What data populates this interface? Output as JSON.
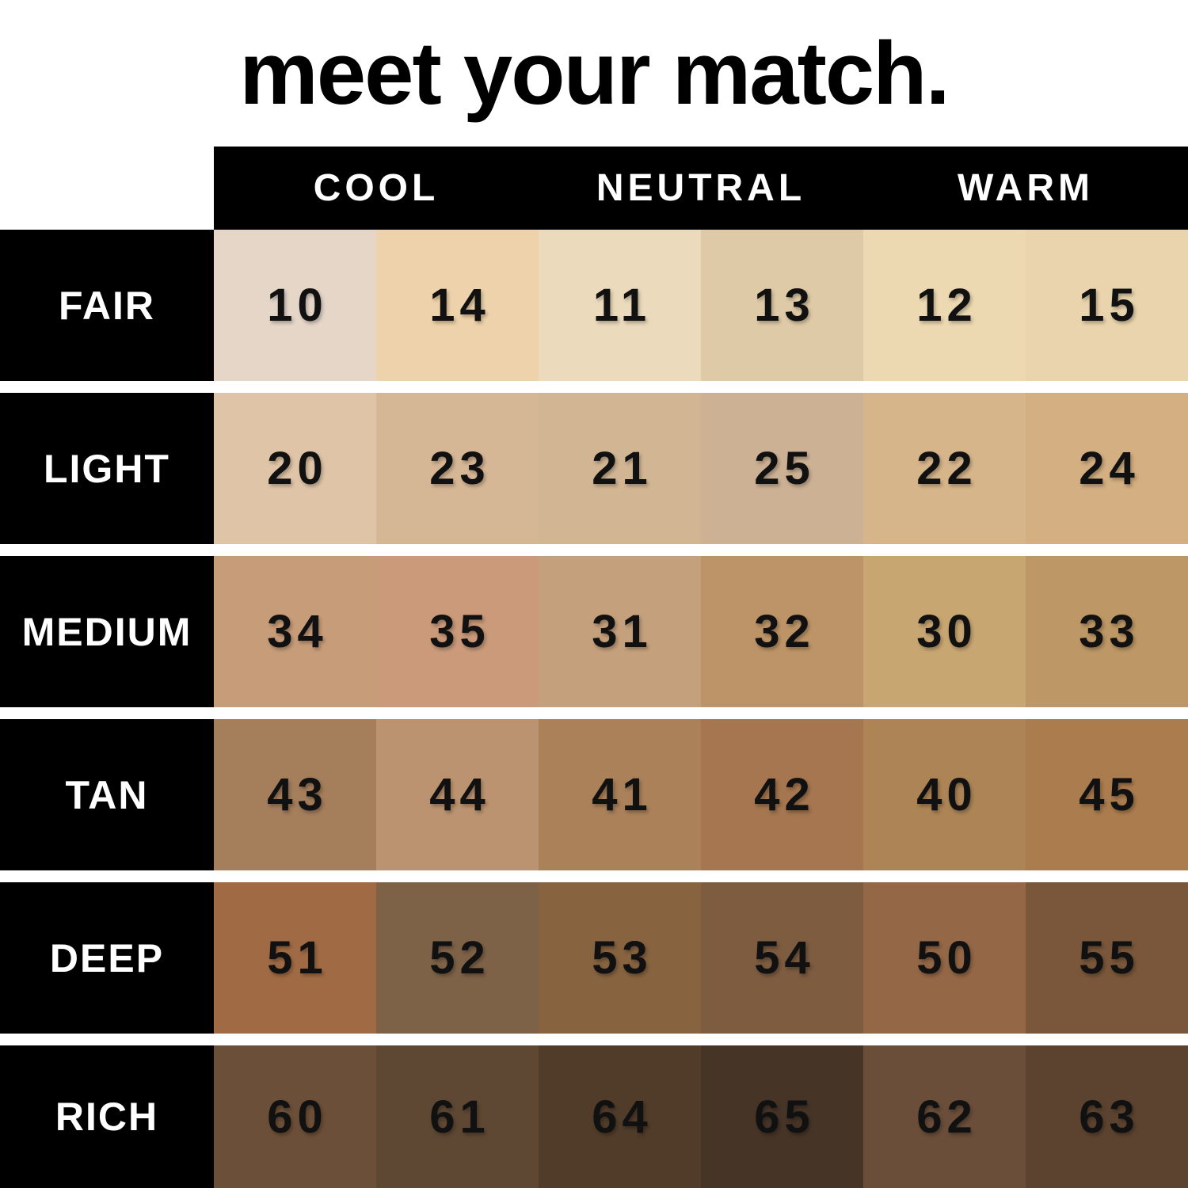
{
  "title": "meet your match.",
  "header": {
    "columns": [
      "COOL",
      "NEUTRAL",
      "WARM"
    ]
  },
  "colors": {
    "background": "#ffffff",
    "bar": "#000000",
    "header_text": "#ffffff",
    "row_label_text": "#ffffff",
    "shade_number_text": "#111111"
  },
  "chart_data": {
    "type": "table",
    "title": "meet your match.",
    "column_groups": [
      "COOL",
      "NEUTRAL",
      "WARM"
    ],
    "layout": "6 depth rows x 6 swatch columns; each undertone header spans two swatch columns; header bar and row labels are black with white text; white gaps between rows",
    "row_labels": [
      "FAIR",
      "LIGHT",
      "MEDIUM",
      "TAN",
      "DEEP",
      "RICH"
    ],
    "rows": [
      {
        "label": "FAIR",
        "cells": [
          {
            "shade": "10",
            "color": "#e5d6c8"
          },
          {
            "shade": "14",
            "color": "#eed2ab"
          },
          {
            "shade": "11",
            "color": "#ebdabc"
          },
          {
            "shade": "13",
            "color": "#dfcaa7"
          },
          {
            "shade": "12",
            "color": "#ecd9b2"
          },
          {
            "shade": "15",
            "color": "#e9d4ad"
          }
        ]
      },
      {
        "label": "LIGHT",
        "cells": [
          {
            "shade": "20",
            "color": "#dfc4a7"
          },
          {
            "shade": "23",
            "color": "#d6b795"
          },
          {
            "shade": "21",
            "color": "#d2b694"
          },
          {
            "shade": "25",
            "color": "#ccb194"
          },
          {
            "shade": "22",
            "color": "#d6b58b"
          },
          {
            "shade": "24",
            "color": "#d3af82"
          }
        ]
      },
      {
        "label": "MEDIUM",
        "cells": [
          {
            "shade": "34",
            "color": "#c79c79"
          },
          {
            "shade": "35",
            "color": "#ca9a7a"
          },
          {
            "shade": "31",
            "color": "#c5a07c"
          },
          {
            "shade": "32",
            "color": "#bd9467"
          },
          {
            "shade": "30",
            "color": "#c8a672"
          },
          {
            "shade": "33",
            "color": "#bd9765"
          }
        ]
      },
      {
        "label": "TAN",
        "cells": [
          {
            "shade": "43",
            "color": "#a57e5c"
          },
          {
            "shade": "44",
            "color": "#bc9370"
          },
          {
            "shade": "41",
            "color": "#ab815a"
          },
          {
            "shade": "42",
            "color": "#a5764f"
          },
          {
            "shade": "40",
            "color": "#ad8456"
          },
          {
            "shade": "45",
            "color": "#ab7c4e"
          }
        ]
      },
      {
        "label": "DEEP",
        "cells": [
          {
            "shade": "51",
            "color": "#a06b44"
          },
          {
            "shade": "52",
            "color": "#7e6248"
          },
          {
            "shade": "53",
            "color": "#876340"
          },
          {
            "shade": "54",
            "color": "#7d5c40"
          },
          {
            "shade": "50",
            "color": "#946746"
          },
          {
            "shade": "55",
            "color": "#7a573a"
          }
        ]
      },
      {
        "label": "RICH",
        "cells": [
          {
            "shade": "60",
            "color": "#6c4f38"
          },
          {
            "shade": "61",
            "color": "#5e4833"
          },
          {
            "shade": "64",
            "color": "#513c2a"
          },
          {
            "shade": "65",
            "color": "#463427"
          },
          {
            "shade": "62",
            "color": "#6a4e3a"
          },
          {
            "shade": "63",
            "color": "#5c432f"
          }
        ]
      }
    ]
  }
}
